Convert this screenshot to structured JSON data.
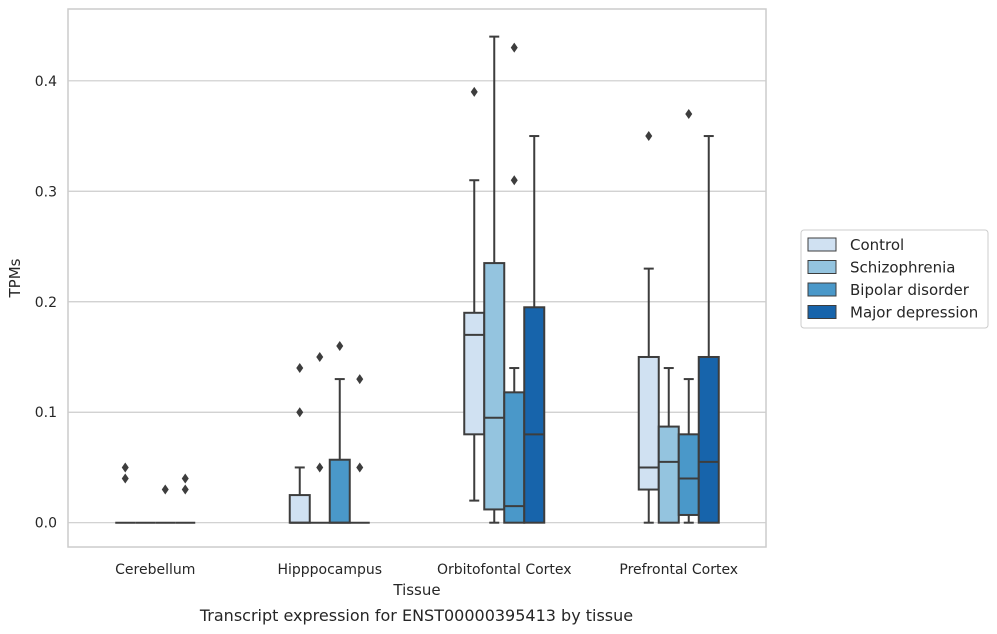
{
  "caption": "Transcript expression for ENST00000395413 by tissue",
  "chart_data": {
    "type": "boxplot",
    "xlabel": "Tissue",
    "ylabel": "TPMs",
    "ylim": [
      -0.022,
      0.465
    ],
    "yticks": [
      0.0,
      0.1,
      0.2,
      0.3,
      0.4
    ],
    "ytick_labels": [
      "0.0",
      "0.1",
      "0.2",
      "0.3",
      "0.4"
    ],
    "grid": "horizontal",
    "legend_position": "right",
    "categories": [
      "Cerebellum",
      "Hipppocampus",
      "Orbitofontal Cortex",
      "Prefrontal Cortex"
    ],
    "series": [
      {
        "name": "Control",
        "color": "#d0e1f2",
        "boxes": [
          {
            "q1": 0,
            "median": 0,
            "q3": 0,
            "whislo": 0,
            "whishi": 0,
            "fliers": [
              0.05,
              0.04
            ]
          },
          {
            "q1": 0,
            "median": 0,
            "q3": 0.025,
            "whislo": 0,
            "whishi": 0.05,
            "fliers": [
              0.14,
              0.1
            ]
          },
          {
            "q1": 0.08,
            "median": 0.17,
            "q3": 0.19,
            "whislo": 0.02,
            "whishi": 0.31,
            "fliers": [
              0.39
            ]
          },
          {
            "q1": 0.03,
            "median": 0.05,
            "q3": 0.15,
            "whislo": 0,
            "whishi": 0.23,
            "fliers": [
              0.35
            ]
          }
        ]
      },
      {
        "name": "Schizophrenia",
        "color": "#94c4df",
        "boxes": [
          {
            "q1": 0,
            "median": 0,
            "q3": 0,
            "whislo": 0,
            "whishi": 0,
            "fliers": []
          },
          {
            "q1": 0,
            "median": 0,
            "q3": 0,
            "whislo": 0,
            "whishi": 0,
            "fliers": [
              0.15,
              0.05
            ]
          },
          {
            "q1": 0.012,
            "median": 0.095,
            "q3": 0.235,
            "whislo": 0,
            "whishi": 0.44,
            "fliers": []
          },
          {
            "q1": 0,
            "median": 0.055,
            "q3": 0.087,
            "whislo": 0,
            "whishi": 0.14,
            "fliers": []
          }
        ]
      },
      {
        "name": "Bipolar disorder",
        "color": "#4a98c9",
        "boxes": [
          {
            "q1": 0,
            "median": 0,
            "q3": 0,
            "whislo": 0,
            "whishi": 0,
            "fliers": [
              0.03
            ]
          },
          {
            "q1": 0,
            "median": 0,
            "q3": 0.057,
            "whislo": 0,
            "whishi": 0.13,
            "fliers": [
              0.16
            ]
          },
          {
            "q1": 0,
            "median": 0.015,
            "q3": 0.118,
            "whislo": 0,
            "whishi": 0.14,
            "fliers": [
              0.43,
              0.31
            ]
          },
          {
            "q1": 0.007,
            "median": 0.04,
            "q3": 0.08,
            "whislo": 0,
            "whishi": 0.13,
            "fliers": [
              0.37
            ]
          }
        ]
      },
      {
        "name": "Major depression",
        "color": "#1764ab",
        "boxes": [
          {
            "q1": 0,
            "median": 0,
            "q3": 0,
            "whislo": 0,
            "whishi": 0,
            "fliers": [
              0.04,
              0.03
            ]
          },
          {
            "q1": 0,
            "median": 0,
            "q3": 0,
            "whislo": 0,
            "whishi": 0,
            "fliers": [
              0.13,
              0.05
            ]
          },
          {
            "q1": 0,
            "median": 0.08,
            "q3": 0.195,
            "whislo": 0,
            "whishi": 0.35,
            "fliers": []
          },
          {
            "q1": 0,
            "median": 0.055,
            "q3": 0.15,
            "whislo": 0,
            "whishi": 0.35,
            "fliers": []
          }
        ]
      }
    ]
  }
}
